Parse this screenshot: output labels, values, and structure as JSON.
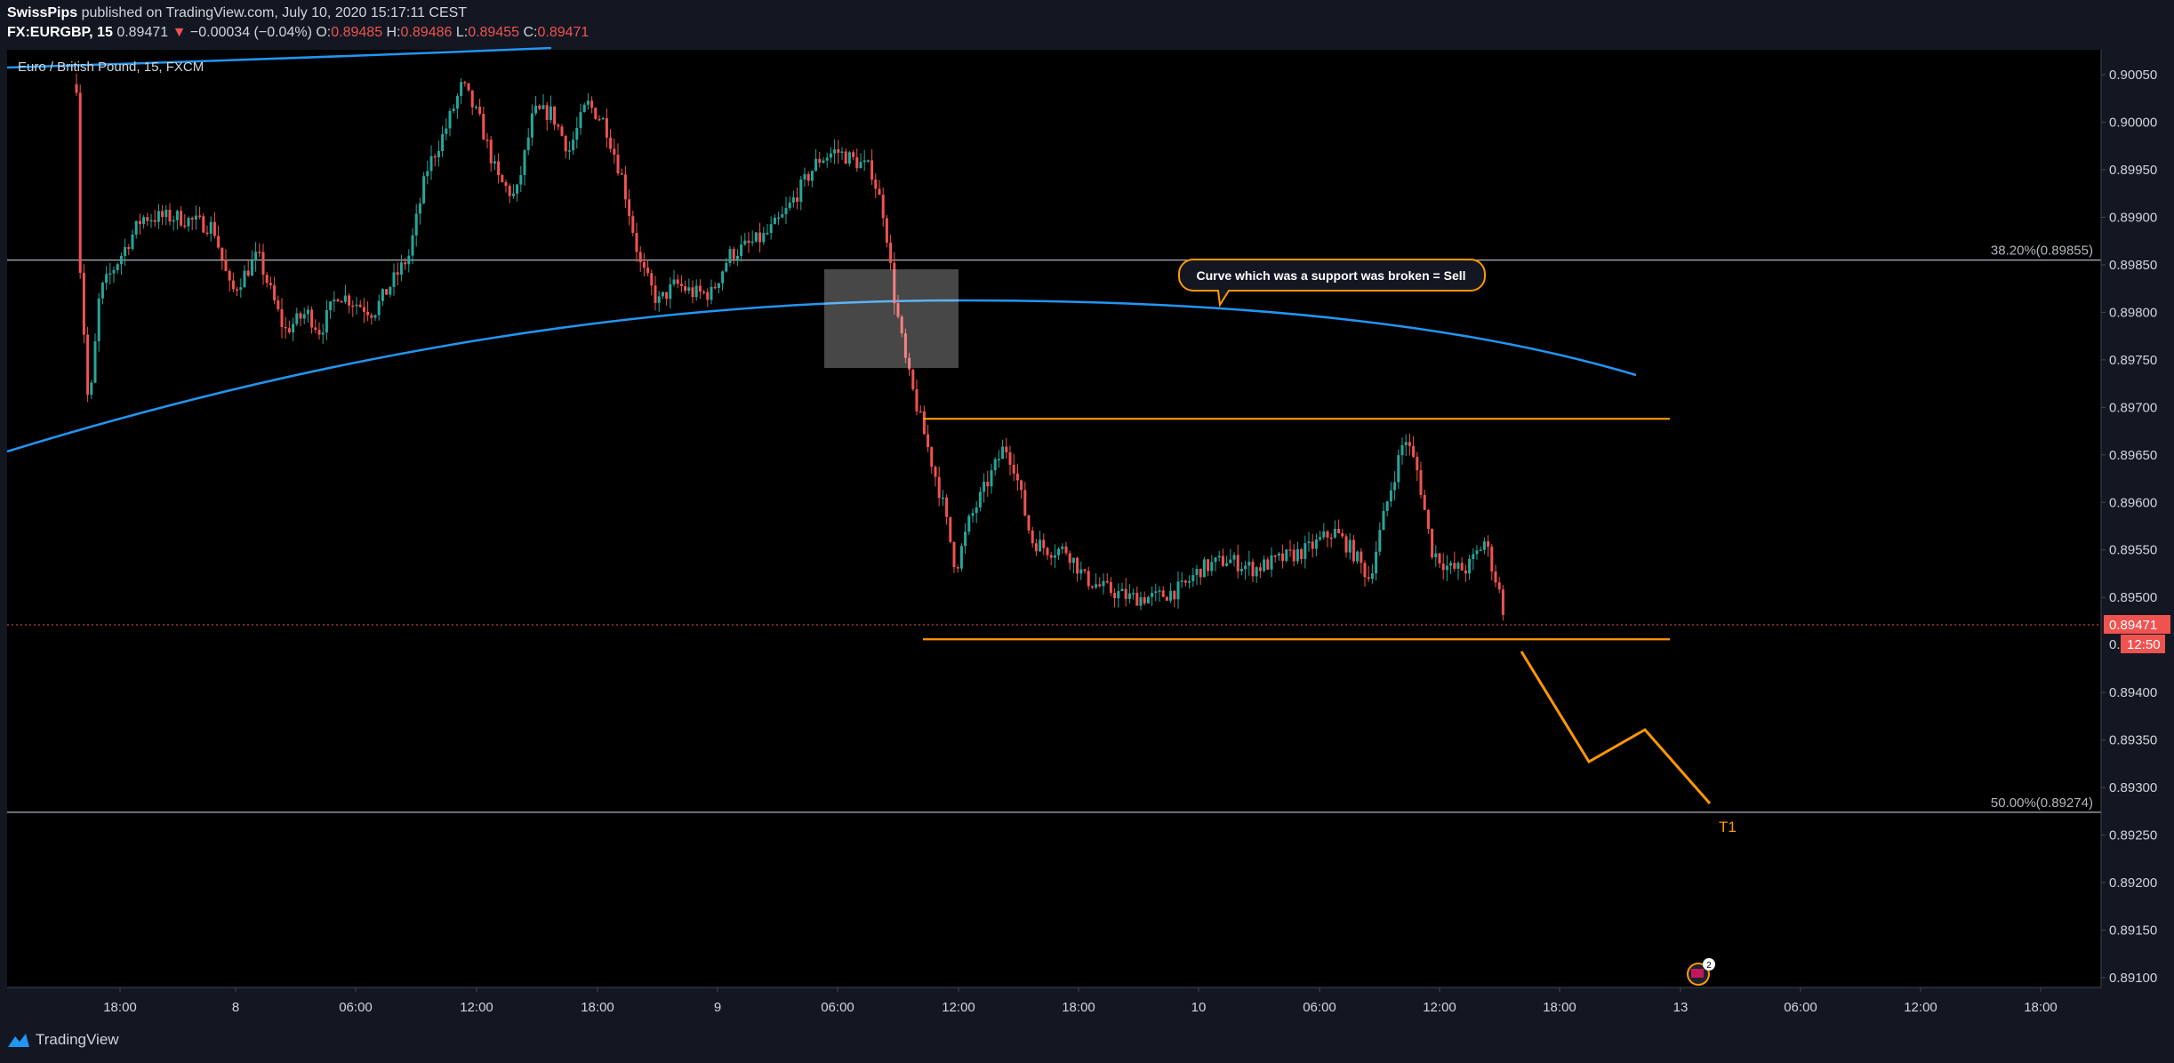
{
  "header": {
    "author": "SwissPips",
    "published_text": "published on TradingView.com, July 10, 2020 15:17:11 CEST",
    "symbol": "FX:EURGBP, 15",
    "last": "0.89471",
    "change": "−0.00034 (−0.04%)",
    "o_label": "O:",
    "o": "0.89485",
    "h_label": "H:",
    "h": "0.89486",
    "l_label": "L:",
    "l": "0.89455",
    "c_label": "C:",
    "c": "0.89471"
  },
  "footer": {
    "brand": "TradingView",
    "logo_icon": "tradingview-logo-icon"
  },
  "colors": {
    "bull": "#26a69a",
    "bear": "#ef5350",
    "curve": "#2196f3",
    "level_lines": "#ff9800",
    "fib": "#9598a1",
    "bg": "#000000"
  },
  "chart_data": {
    "type": "candlestick",
    "title": "Euro / British Pound, 15, FXCM",
    "y_ticks": [
      "0.90050",
      "0.90000",
      "0.89950",
      "0.89900",
      "0.89850",
      "0.89800",
      "0.89750",
      "0.89700",
      "0.89650",
      "0.89600",
      "0.89550",
      "0.89500",
      "0.89400",
      "0.89350",
      "0.89300",
      "0.89250",
      "0.89200",
      "0.89150",
      "0.89100"
    ],
    "ylim": [
      0.8907,
      0.9008
    ],
    "x_ticks": [
      "18:00",
      "8",
      "06:00",
      "12:00",
      "18:00",
      "9",
      "06:00",
      "12:00",
      "18:00",
      "10",
      "06:00",
      "12:00",
      "18:00",
      "13",
      "06:00",
      "12:00",
      "18:00"
    ],
    "price_label": "0.89471",
    "countdown_label": "12:50",
    "countdown_prefix": "0.",
    "fib_levels": [
      {
        "label": "38.20%(0.89855)",
        "value": 0.89855
      },
      {
        "label": "50.00%(0.89274)",
        "value": 0.89274
      }
    ],
    "range_top": 0.89688,
    "range_bottom": 0.89456,
    "annotation": "Curve which was a support was broken = Sell",
    "target_label": "T1",
    "event_count": "2",
    "projection": [
      {
        "x": "Jul 10 16:00",
        "y": 0.89445
      },
      {
        "x": "Jul 10 19:00",
        "y": 0.89322
      },
      {
        "x": "Jul 10 22:00",
        "y": 0.8936
      },
      {
        "x": "Jul 13 01:00",
        "y": 0.89276
      }
    ]
  }
}
